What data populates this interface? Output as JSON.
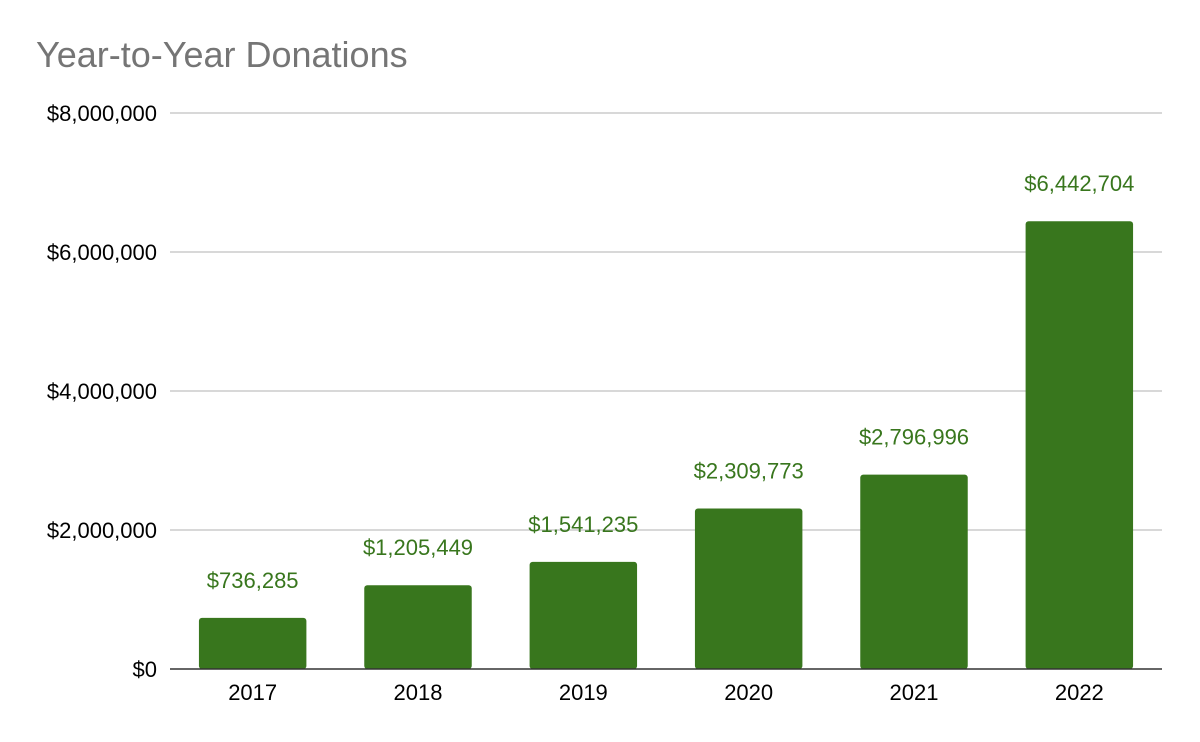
{
  "chart_data": {
    "type": "bar",
    "title": "Year-to-Year Donations",
    "categories": [
      "2017",
      "2018",
      "2019",
      "2020",
      "2021",
      "2022"
    ],
    "values": [
      736285,
      1205449,
      1541235,
      2309773,
      2796996,
      6442704
    ],
    "data_labels": [
      "$736,285",
      "$1,205,449",
      "$1,541,235",
      "$2,309,773",
      "$2,796,996",
      "$6,442,704"
    ],
    "y_tick_labels": [
      "$0",
      "$2,000,000",
      "$4,000,000",
      "$6,000,000",
      "$8,000,000"
    ],
    "y_tick_values": [
      0,
      2000000,
      4000000,
      6000000,
      8000000
    ],
    "ylim": [
      0,
      8000000
    ],
    "xlabel": "",
    "ylabel": "",
    "grid": true,
    "legend": "none",
    "colors": {
      "bar": "#38761d",
      "data_label": "#38761d",
      "title": "#757575",
      "gridline": "#cccccc",
      "axis": "#333333"
    }
  }
}
